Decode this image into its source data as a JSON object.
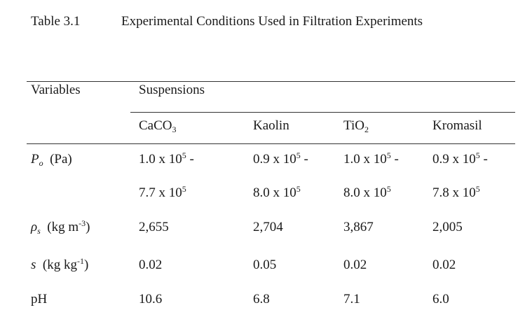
{
  "caption": {
    "label": "Table 3.1",
    "title": "Experimental Conditions Used in Filtration Experiments"
  },
  "header": {
    "variables": "Variables",
    "suspensions": "Suspensions",
    "columns": [
      {
        "base": "CaCO",
        "sub": "3",
        "tail": ""
      },
      {
        "base": "Kaolin",
        "sub": "",
        "tail": ""
      },
      {
        "base": "TiO",
        "sub": "2",
        "tail": ""
      },
      {
        "base": "Kromasil",
        "sub": "",
        "tail": ""
      }
    ]
  },
  "rows": {
    "po": {
      "symbol": "P",
      "symbol_sub": "o",
      "unit": "(Pa)",
      "line1": [
        {
          "mant": "1.0 x 10",
          "exp": "5",
          "tail": " -"
        },
        {
          "mant": "0.9 x 10",
          "exp": "5",
          "tail": " -"
        },
        {
          "mant": "1.0 x 10",
          "exp": "5",
          "tail": " -"
        },
        {
          "mant": "0.9 x 10",
          "exp": "5",
          "tail": " -"
        }
      ],
      "line2": [
        {
          "mant": "7.7 x 10",
          "exp": "5"
        },
        {
          "mant": "8.0 x 10",
          "exp": "5"
        },
        {
          "mant": "8.0 x 10",
          "exp": "5"
        },
        {
          "mant": "7.8 x 10",
          "exp": "5"
        }
      ]
    },
    "rho": {
      "symbol": "ρ",
      "symbol_sub": "s",
      "unit_pre": "(kg m",
      "unit_sup": "-3",
      "unit_post": ")",
      "values": [
        "2,655",
        "2,704",
        "3,867",
        "2,005"
      ]
    },
    "s": {
      "symbol": "s",
      "unit_pre": "(kg kg",
      "unit_sup": "-1",
      "unit_post": ")",
      "values": [
        "0.02",
        "0.05",
        "0.02",
        "0.02"
      ]
    },
    "ph": {
      "label": "pH",
      "values": [
        "10.6",
        "6.8",
        "7.1",
        "6.0"
      ]
    }
  }
}
